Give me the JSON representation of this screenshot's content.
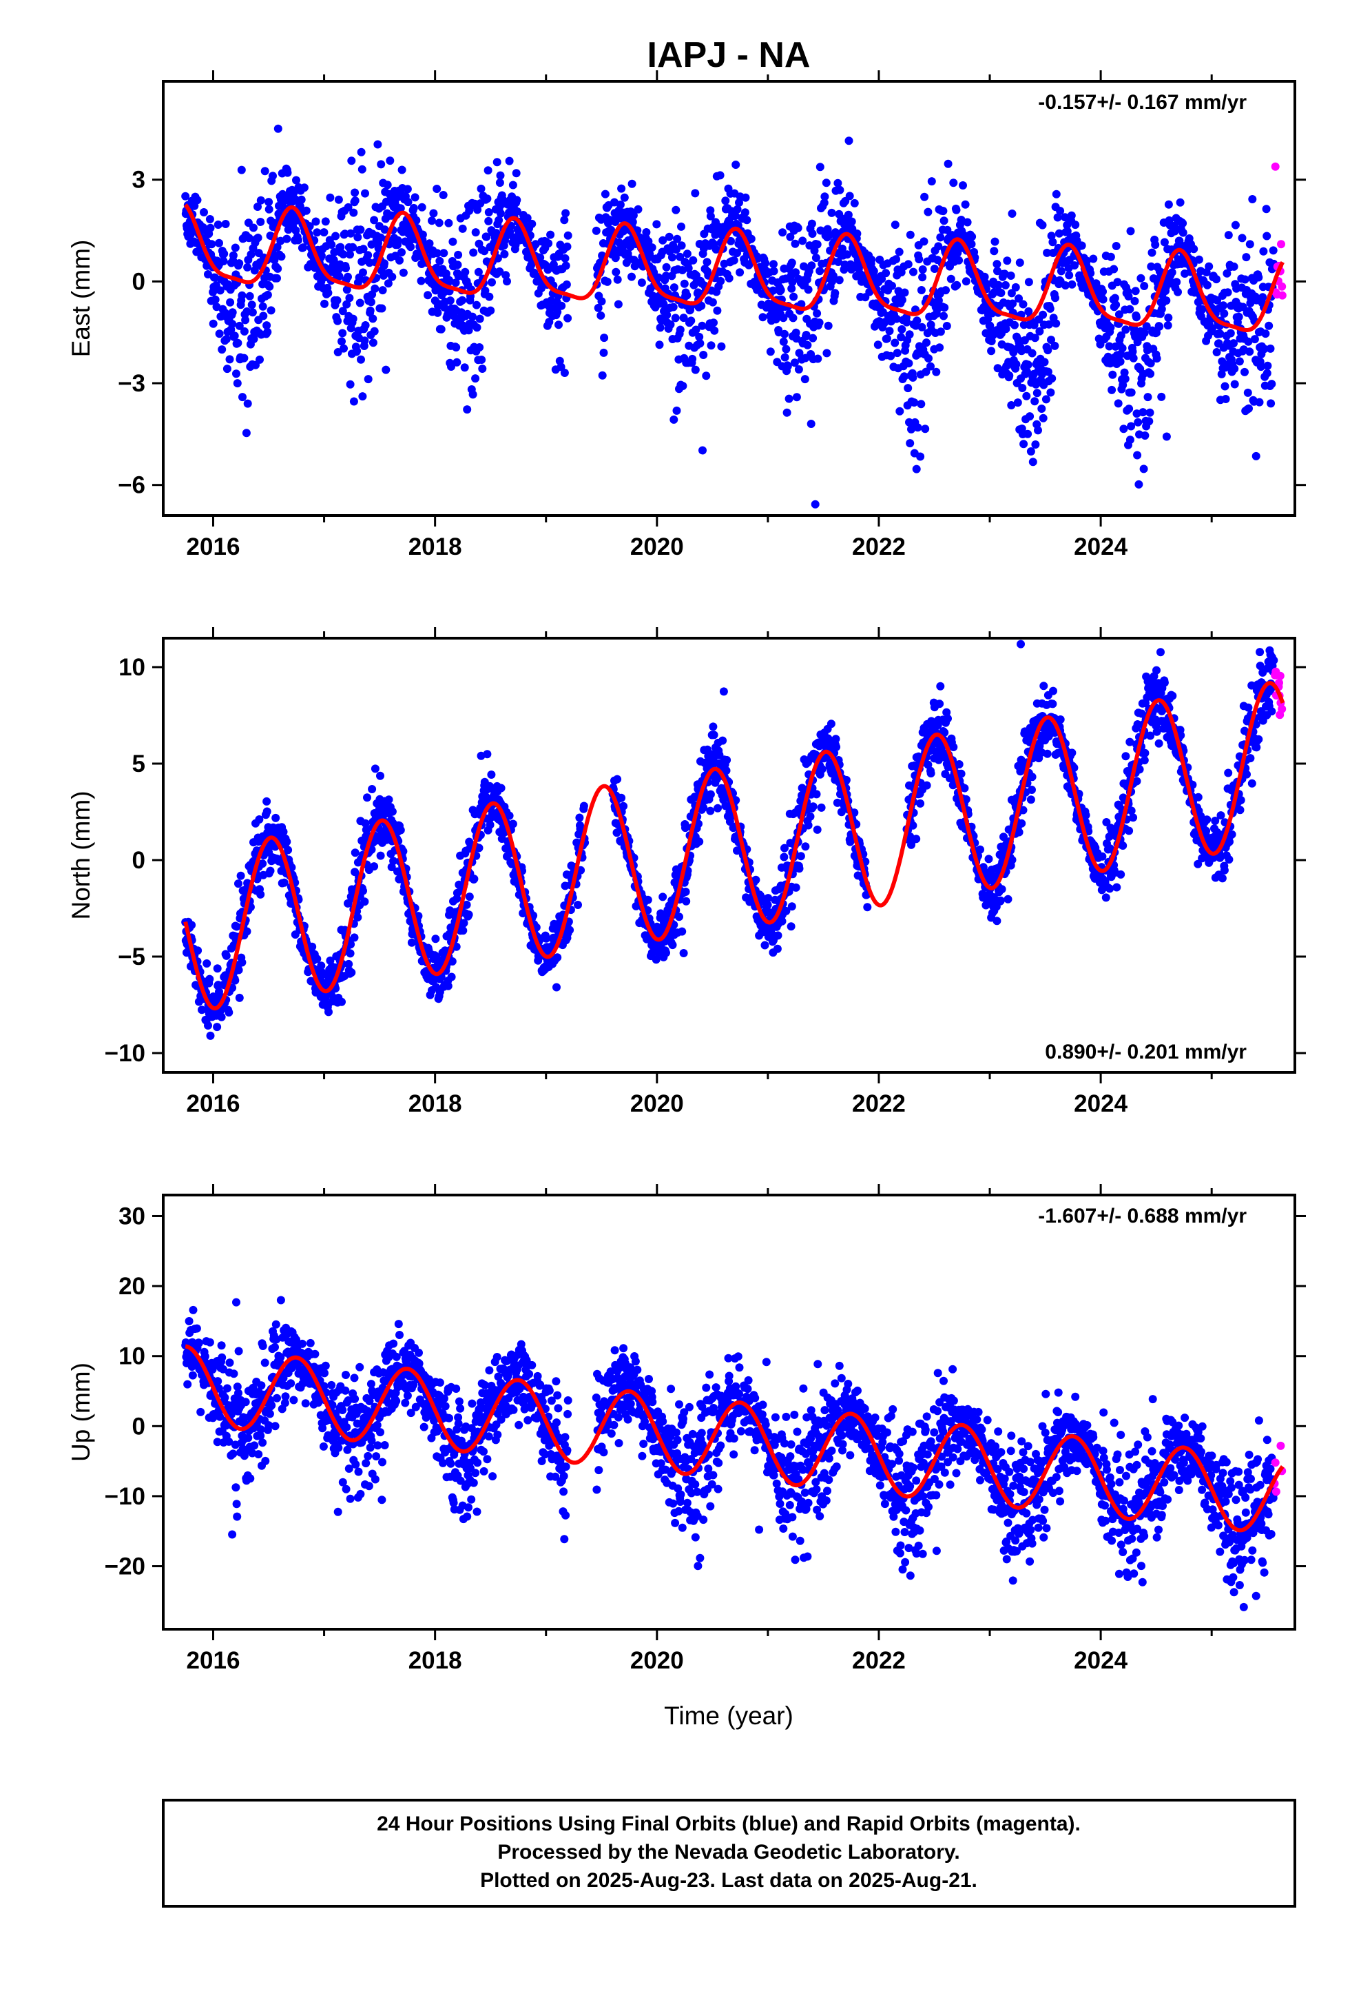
{
  "figure": {
    "title": "IAPJ - NA",
    "xlabel": "Time (year)",
    "footer_lines": [
      "24 Hour Positions Using Final Orbits (blue) and Rapid Orbits (magenta).",
      "Processed by the Nevada Geodetic Laboratory.",
      "Plotted on 2025-Aug-23. Last data on 2025-Aug-21."
    ],
    "colors": {
      "final_orbits": "#0000ff",
      "rapid_orbits": "#ff00ff",
      "model": "#ff0000",
      "axes": "#000000"
    }
  },
  "chart_data": [
    {
      "type": "scatter",
      "ylabel": "East (mm)",
      "rate_label": "-0.157+/- 0.167 mm/yr",
      "rate_position": "top-right",
      "xlim": [
        2015.55,
        2025.75
      ],
      "ylim": [
        -6.9,
        5.9
      ],
      "xticks": [
        2016,
        2018,
        2020,
        2022,
        2024
      ],
      "yticks": [
        3,
        0,
        -3,
        -6
      ],
      "grid": false,
      "data_start": 2015.75,
      "data_end": 2025.64,
      "rapid_start": 2025.56,
      "trend": {
        "offset_at_2016": 0.9,
        "rate_mm_per_yr": -0.157
      },
      "annual": {
        "amplitude": 1.1,
        "peak_phase_year_fraction": 0.72
      },
      "semiannual": {
        "amplitude": 0.3,
        "peak_phase_year_fraction": 0.2
      },
      "scatter_sigma": 1.0,
      "seasonal_noise_amp": 0.6,
      "dips": [
        {
          "year": 2016.25,
          "depth": -1.2,
          "width": 0.12
        },
        {
          "year": 2022.35,
          "depth": -1.3,
          "width": 0.1
        },
        {
          "year": 2023.4,
          "depth": -1.6,
          "width": 0.12
        },
        {
          "year": 2024.35,
          "depth": -1.4,
          "width": 0.12
        }
      ],
      "gaps": [
        [
          2019.2,
          2019.45
        ]
      ]
    },
    {
      "type": "scatter",
      "ylabel": "North (mm)",
      "rate_label": "0.890+/- 0.201 mm/yr",
      "rate_position": "bottom-right",
      "xlim": [
        2015.55,
        2025.75
      ],
      "ylim": [
        -11,
        11.5
      ],
      "xticks": [
        2016,
        2018,
        2020,
        2022,
        2024
      ],
      "yticks": [
        10,
        5,
        0,
        -5,
        -10
      ],
      "grid": false,
      "data_start": 2015.75,
      "data_end": 2025.64,
      "rapid_start": 2025.56,
      "trend": {
        "offset_at_2016": -3.5,
        "rate_mm_per_yr": 0.89
      },
      "annual": {
        "amplitude": 4.2,
        "peak_phase_year_fraction": 0.52
      },
      "semiannual": {
        "amplitude": 0.0,
        "peak_phase_year_fraction": 0.0
      },
      "scatter_sigma": 0.85,
      "seasonal_noise_amp": 0.3,
      "dips": [],
      "gaps": [
        [
          2019.35,
          2019.6
        ],
        [
          2021.9,
          2022.25
        ]
      ]
    },
    {
      "type": "scatter",
      "ylabel": "Up (mm)",
      "rate_label": "-1.607+/- 0.688 mm/yr",
      "rate_position": "top-right",
      "xlim": [
        2015.55,
        2025.75
      ],
      "ylim": [
        -29,
        33
      ],
      "xticks": [
        2016,
        2018,
        2020,
        2022,
        2024
      ],
      "yticks": [
        30,
        20,
        10,
        0,
        -10,
        -20
      ],
      "grid": false,
      "data_start": 2015.75,
      "data_end": 2025.64,
      "rapid_start": 2025.56,
      "trend": {
        "offset_at_2016": 5.5,
        "rate_mm_per_yr": -1.607
      },
      "annual": {
        "amplitude": 5.5,
        "peak_phase_year_fraction": 0.75
      },
      "semiannual": {
        "amplitude": 0.0,
        "peak_phase_year_fraction": 0.0
      },
      "scatter_sigma": 3.6,
      "seasonal_noise_amp": 0.4,
      "dips": [],
      "gaps": [
        [
          2019.2,
          2019.45
        ]
      ]
    }
  ]
}
